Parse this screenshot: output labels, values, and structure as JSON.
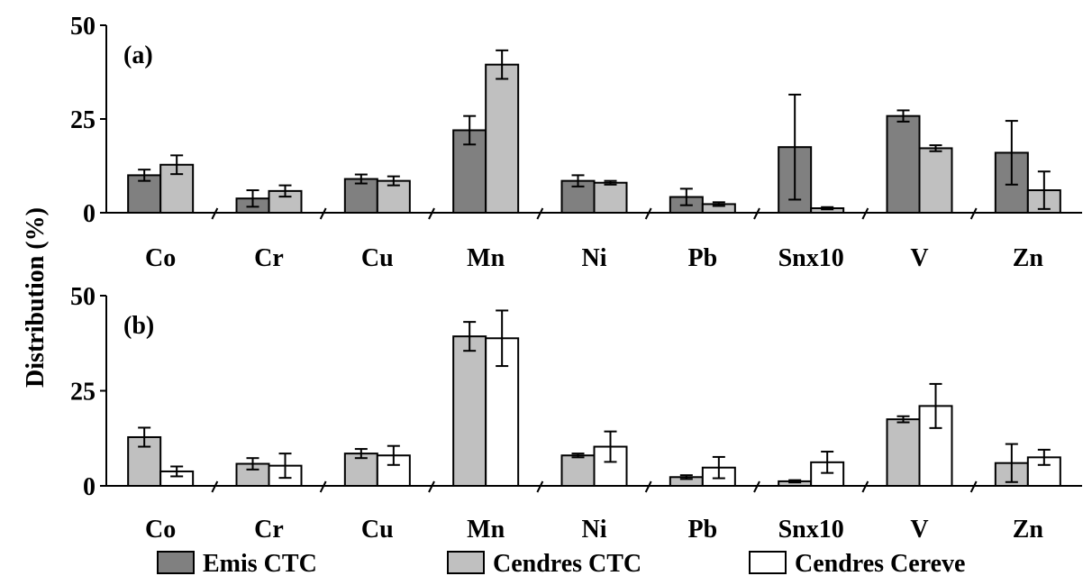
{
  "chart_data": {
    "type": "bar",
    "ylabel": "Distribution (%)",
    "categories": [
      "Co",
      "Cr",
      "Cu",
      "Mn",
      "Ni",
      "Pb",
      "Snx10",
      "V",
      "Zn"
    ],
    "legend": {
      "placement": "bottom",
      "entries": [
        {
          "name": "Emis CTC",
          "color": "#808080"
        },
        {
          "name": "Cendres CTC",
          "color": "#c0c0c0"
        },
        {
          "name": "Cendres Cereve",
          "color": "#ffffff"
        }
      ]
    },
    "panels": [
      {
        "label": "(a)",
        "ylim": [
          0,
          50
        ],
        "yticks": [
          0,
          25,
          50
        ],
        "series": [
          {
            "name": "Emis CTC",
            "color": "#808080",
            "values": [
              10,
              3.8,
              9,
              22,
              8.5,
              4.2,
              17.5,
              25.8,
              16
            ],
            "errors": [
              1.5,
              2.2,
              1.2,
              3.8,
              1.5,
              2.2,
              14,
              1.5,
              8.5
            ]
          },
          {
            "name": "Cendres CTC",
            "color": "#c0c0c0",
            "values": [
              12.8,
              5.8,
              8.5,
              39.5,
              8,
              2.3,
              1.2,
              17.2,
              6
            ],
            "errors": [
              2.5,
              1.5,
              1.2,
              3.8,
              0.5,
              0.5,
              0.3,
              0.8,
              5
            ]
          }
        ]
      },
      {
        "label": "(b)",
        "ylim": [
          0,
          50
        ],
        "yticks": [
          0,
          25,
          50
        ],
        "series": [
          {
            "name": "Cendres CTC",
            "color": "#c0c0c0",
            "values": [
              12.8,
              5.8,
              8.5,
              39.3,
              8,
              2.3,
              1.2,
              17.5,
              6
            ],
            "errors": [
              2.5,
              1.5,
              1.2,
              3.8,
              0.5,
              0.5,
              0.3,
              0.8,
              5
            ]
          },
          {
            "name": "Cendres Cereve",
            "color": "#ffffff",
            "values": [
              3.8,
              5.3,
              8,
              38.8,
              10.3,
              4.8,
              6.2,
              21,
              7.5
            ],
            "errors": [
              1.3,
              3.2,
              2.5,
              7.3,
              4,
              2.8,
              2.8,
              5.8,
              2
            ]
          }
        ]
      }
    ]
  }
}
